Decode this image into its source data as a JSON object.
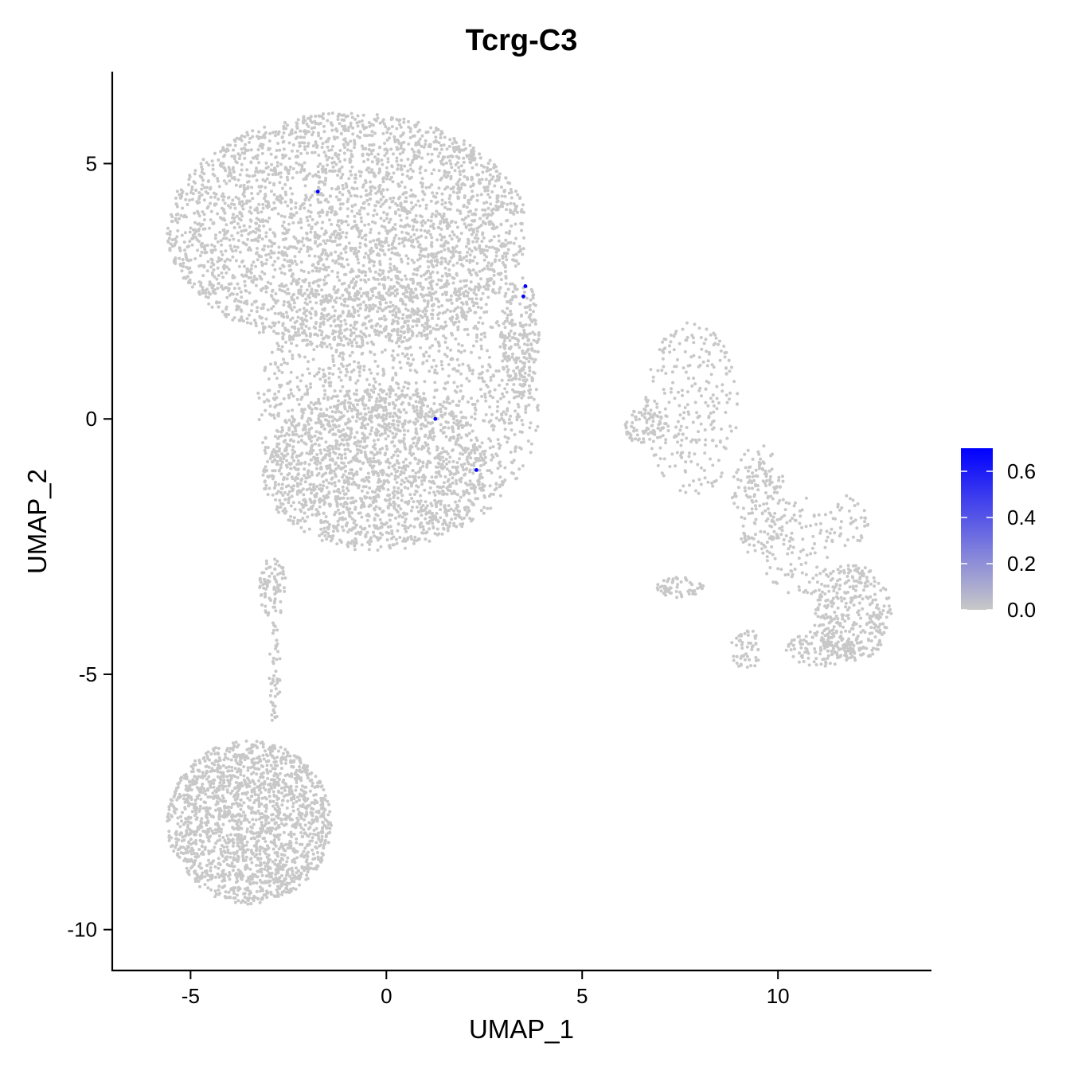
{
  "chart_data": {
    "type": "scatter",
    "title": "Tcrg-C3",
    "xlabel": "UMAP_1",
    "ylabel": "UMAP_2",
    "xlim": [
      -7,
      13.9
    ],
    "ylim": [
      -10.8,
      6.8
    ],
    "x_ticks": [
      -5,
      0,
      5,
      10
    ],
    "y_ticks": [
      -10,
      -5,
      0,
      5
    ],
    "x_tick_labels": [
      "-5",
      "0",
      "5",
      "10"
    ],
    "y_tick_labels": [
      "-10",
      "-5",
      "0",
      "5"
    ],
    "grid": false,
    "point_color_low": "#c8c8c8",
    "point_color_high": "#0000ff",
    "colorbar": {
      "range": [
        0,
        0.7
      ],
      "ticks": [
        0.0,
        0.2,
        0.4,
        0.6
      ],
      "tick_labels": [
        "0.0",
        "0.2",
        "0.4",
        "0.6"
      ],
      "placement": "right"
    },
    "expressing_points": [
      {
        "x": -1.75,
        "y": 4.45,
        "value": 0.7
      },
      {
        "x": 3.55,
        "y": 2.6,
        "value": 0.7
      },
      {
        "x": 3.5,
        "y": 2.4,
        "value": 0.7
      },
      {
        "x": 1.25,
        "y": 0.0,
        "value": 0.7
      },
      {
        "x": 2.3,
        "y": -1.0,
        "value": 0.7
      }
    ],
    "background_clusters": [
      {
        "cx": -1.0,
        "cy": 3.7,
        "rx": 4.6,
        "ry": 2.3,
        "n": 3200
      },
      {
        "cx": 0.3,
        "cy": 0.2,
        "rx": 3.6,
        "ry": 2.6,
        "n": 1500
      },
      {
        "cx": -0.3,
        "cy": -1.0,
        "rx": 2.9,
        "ry": 1.6,
        "n": 1300
      },
      {
        "cx": 3.4,
        "cy": 1.6,
        "rx": 0.5,
        "ry": 1.2,
        "n": 200
      },
      {
        "cx": -3.5,
        "cy": -7.9,
        "rx": 2.1,
        "ry": 1.6,
        "n": 1800
      },
      {
        "cx": -2.9,
        "cy": -3.3,
        "rx": 0.35,
        "ry": 0.6,
        "n": 90
      },
      {
        "cx": -2.85,
        "cy": -5.0,
        "rx": 0.15,
        "ry": 1.1,
        "n": 50
      },
      {
        "cx": 7.8,
        "cy": 0.2,
        "rx": 1.2,
        "ry": 1.7,
        "n": 260
      },
      {
        "cx": 6.6,
        "cy": -0.15,
        "rx": 0.55,
        "ry": 0.35,
        "n": 80
      },
      {
        "cx": 9.5,
        "cy": -1.6,
        "rx": 0.7,
        "ry": 1.1,
        "n": 160
      },
      {
        "cx": 10.5,
        "cy": -2.5,
        "rx": 1.0,
        "ry": 1.0,
        "n": 120
      },
      {
        "cx": 11.9,
        "cy": -3.8,
        "rx": 1.0,
        "ry": 0.95,
        "n": 340
      },
      {
        "cx": 11.1,
        "cy": -4.5,
        "rx": 0.9,
        "ry": 0.35,
        "n": 120
      },
      {
        "cx": 7.5,
        "cy": -3.3,
        "rx": 0.6,
        "ry": 0.2,
        "n": 60
      },
      {
        "cx": 9.2,
        "cy": -4.5,
        "rx": 0.4,
        "ry": 0.4,
        "n": 50
      },
      {
        "cx": 11.8,
        "cy": -2.0,
        "rx": 0.5,
        "ry": 0.5,
        "n": 40
      }
    ]
  }
}
